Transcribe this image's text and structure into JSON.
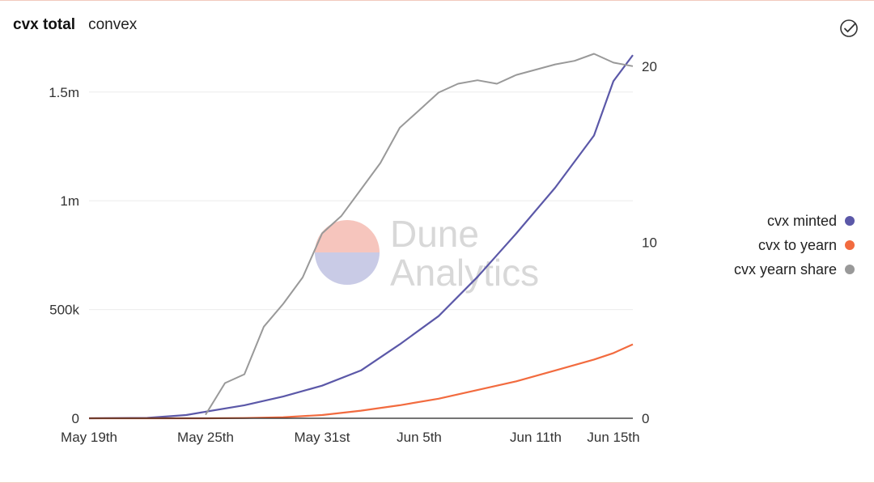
{
  "header": {
    "title": "cvx total",
    "subtitle": "convex"
  },
  "icons": {
    "check": "check-circle-icon"
  },
  "watermark": {
    "line1": "Dune",
    "line2": "Analytics"
  },
  "colors": {
    "minted": "#5b58a8",
    "to_yearn": "#f26b3f",
    "share": "#999999",
    "grid": "#ececec",
    "axis": "#222222",
    "watermark_pink": "#f6c5bd",
    "watermark_blue": "#c9cbe6"
  },
  "chart_data": {
    "type": "line",
    "x_ticks": [
      "May 19th",
      "May 25th",
      "May 31st",
      "Jun 5th",
      "Jun 11th",
      "Jun 15th"
    ],
    "x_tick_dates": [
      "2021-05-19",
      "2021-05-25",
      "2021-05-31",
      "2021-06-05",
      "2021-06-11",
      "2021-06-15"
    ],
    "x_range": [
      "2021-05-19",
      "2021-06-16"
    ],
    "y_left": {
      "range": [
        0,
        1700000
      ],
      "ticks": [
        0,
        500000,
        1000000,
        1500000
      ],
      "tick_labels": [
        "0",
        "500k",
        "1m",
        "1.5m"
      ]
    },
    "y_right": {
      "range": [
        0,
        21
      ],
      "ticks": [
        0,
        10,
        20
      ],
      "tick_labels": [
        "0",
        "10",
        "20"
      ]
    },
    "grid": true,
    "legend_position": "right",
    "series": [
      {
        "name": "cvx minted",
        "axis": "left",
        "color": "#5b58a8",
        "x": [
          "2021-05-19",
          "2021-05-22",
          "2021-05-24",
          "2021-05-25",
          "2021-05-27",
          "2021-05-29",
          "2021-05-31",
          "2021-06-02",
          "2021-06-04",
          "2021-06-06",
          "2021-06-08",
          "2021-06-10",
          "2021-06-12",
          "2021-06-14",
          "2021-06-15",
          "2021-06-16"
        ],
        "y": [
          0,
          2000,
          15000,
          30000,
          60000,
          100000,
          150000,
          220000,
          340000,
          470000,
          650000,
          850000,
          1060000,
          1300000,
          1550000,
          1670000
        ]
      },
      {
        "name": "cvx to yearn",
        "axis": "left",
        "color": "#f26b3f",
        "x": [
          "2021-05-19",
          "2021-05-25",
          "2021-05-27",
          "2021-05-29",
          "2021-05-31",
          "2021-06-02",
          "2021-06-04",
          "2021-06-06",
          "2021-06-08",
          "2021-06-10",
          "2021-06-12",
          "2021-06-14",
          "2021-06-15",
          "2021-06-16"
        ],
        "y": [
          0,
          0,
          1000,
          5000,
          15000,
          35000,
          60000,
          90000,
          130000,
          170000,
          220000,
          270000,
          300000,
          340000
        ]
      },
      {
        "name": "cvx yearn share",
        "axis": "right",
        "color": "#999999",
        "x": [
          "2021-05-25",
          "2021-05-26",
          "2021-05-27",
          "2021-05-28",
          "2021-05-29",
          "2021-05-30",
          "2021-05-31",
          "2021-06-01",
          "2021-06-02",
          "2021-06-03",
          "2021-06-04",
          "2021-06-05",
          "2021-06-06",
          "2021-06-07",
          "2021-06-08",
          "2021-06-09",
          "2021-06-10",
          "2021-06-11",
          "2021-06-12",
          "2021-06-13",
          "2021-06-14",
          "2021-06-15",
          "2021-06-16"
        ],
        "y": [
          0.2,
          2.0,
          2.5,
          5.2,
          6.5,
          8.0,
          10.5,
          11.5,
          13.0,
          14.5,
          16.5,
          17.5,
          18.5,
          19.0,
          19.2,
          19.0,
          19.5,
          19.8,
          20.1,
          20.3,
          20.7,
          20.2,
          20.0
        ]
      }
    ]
  }
}
